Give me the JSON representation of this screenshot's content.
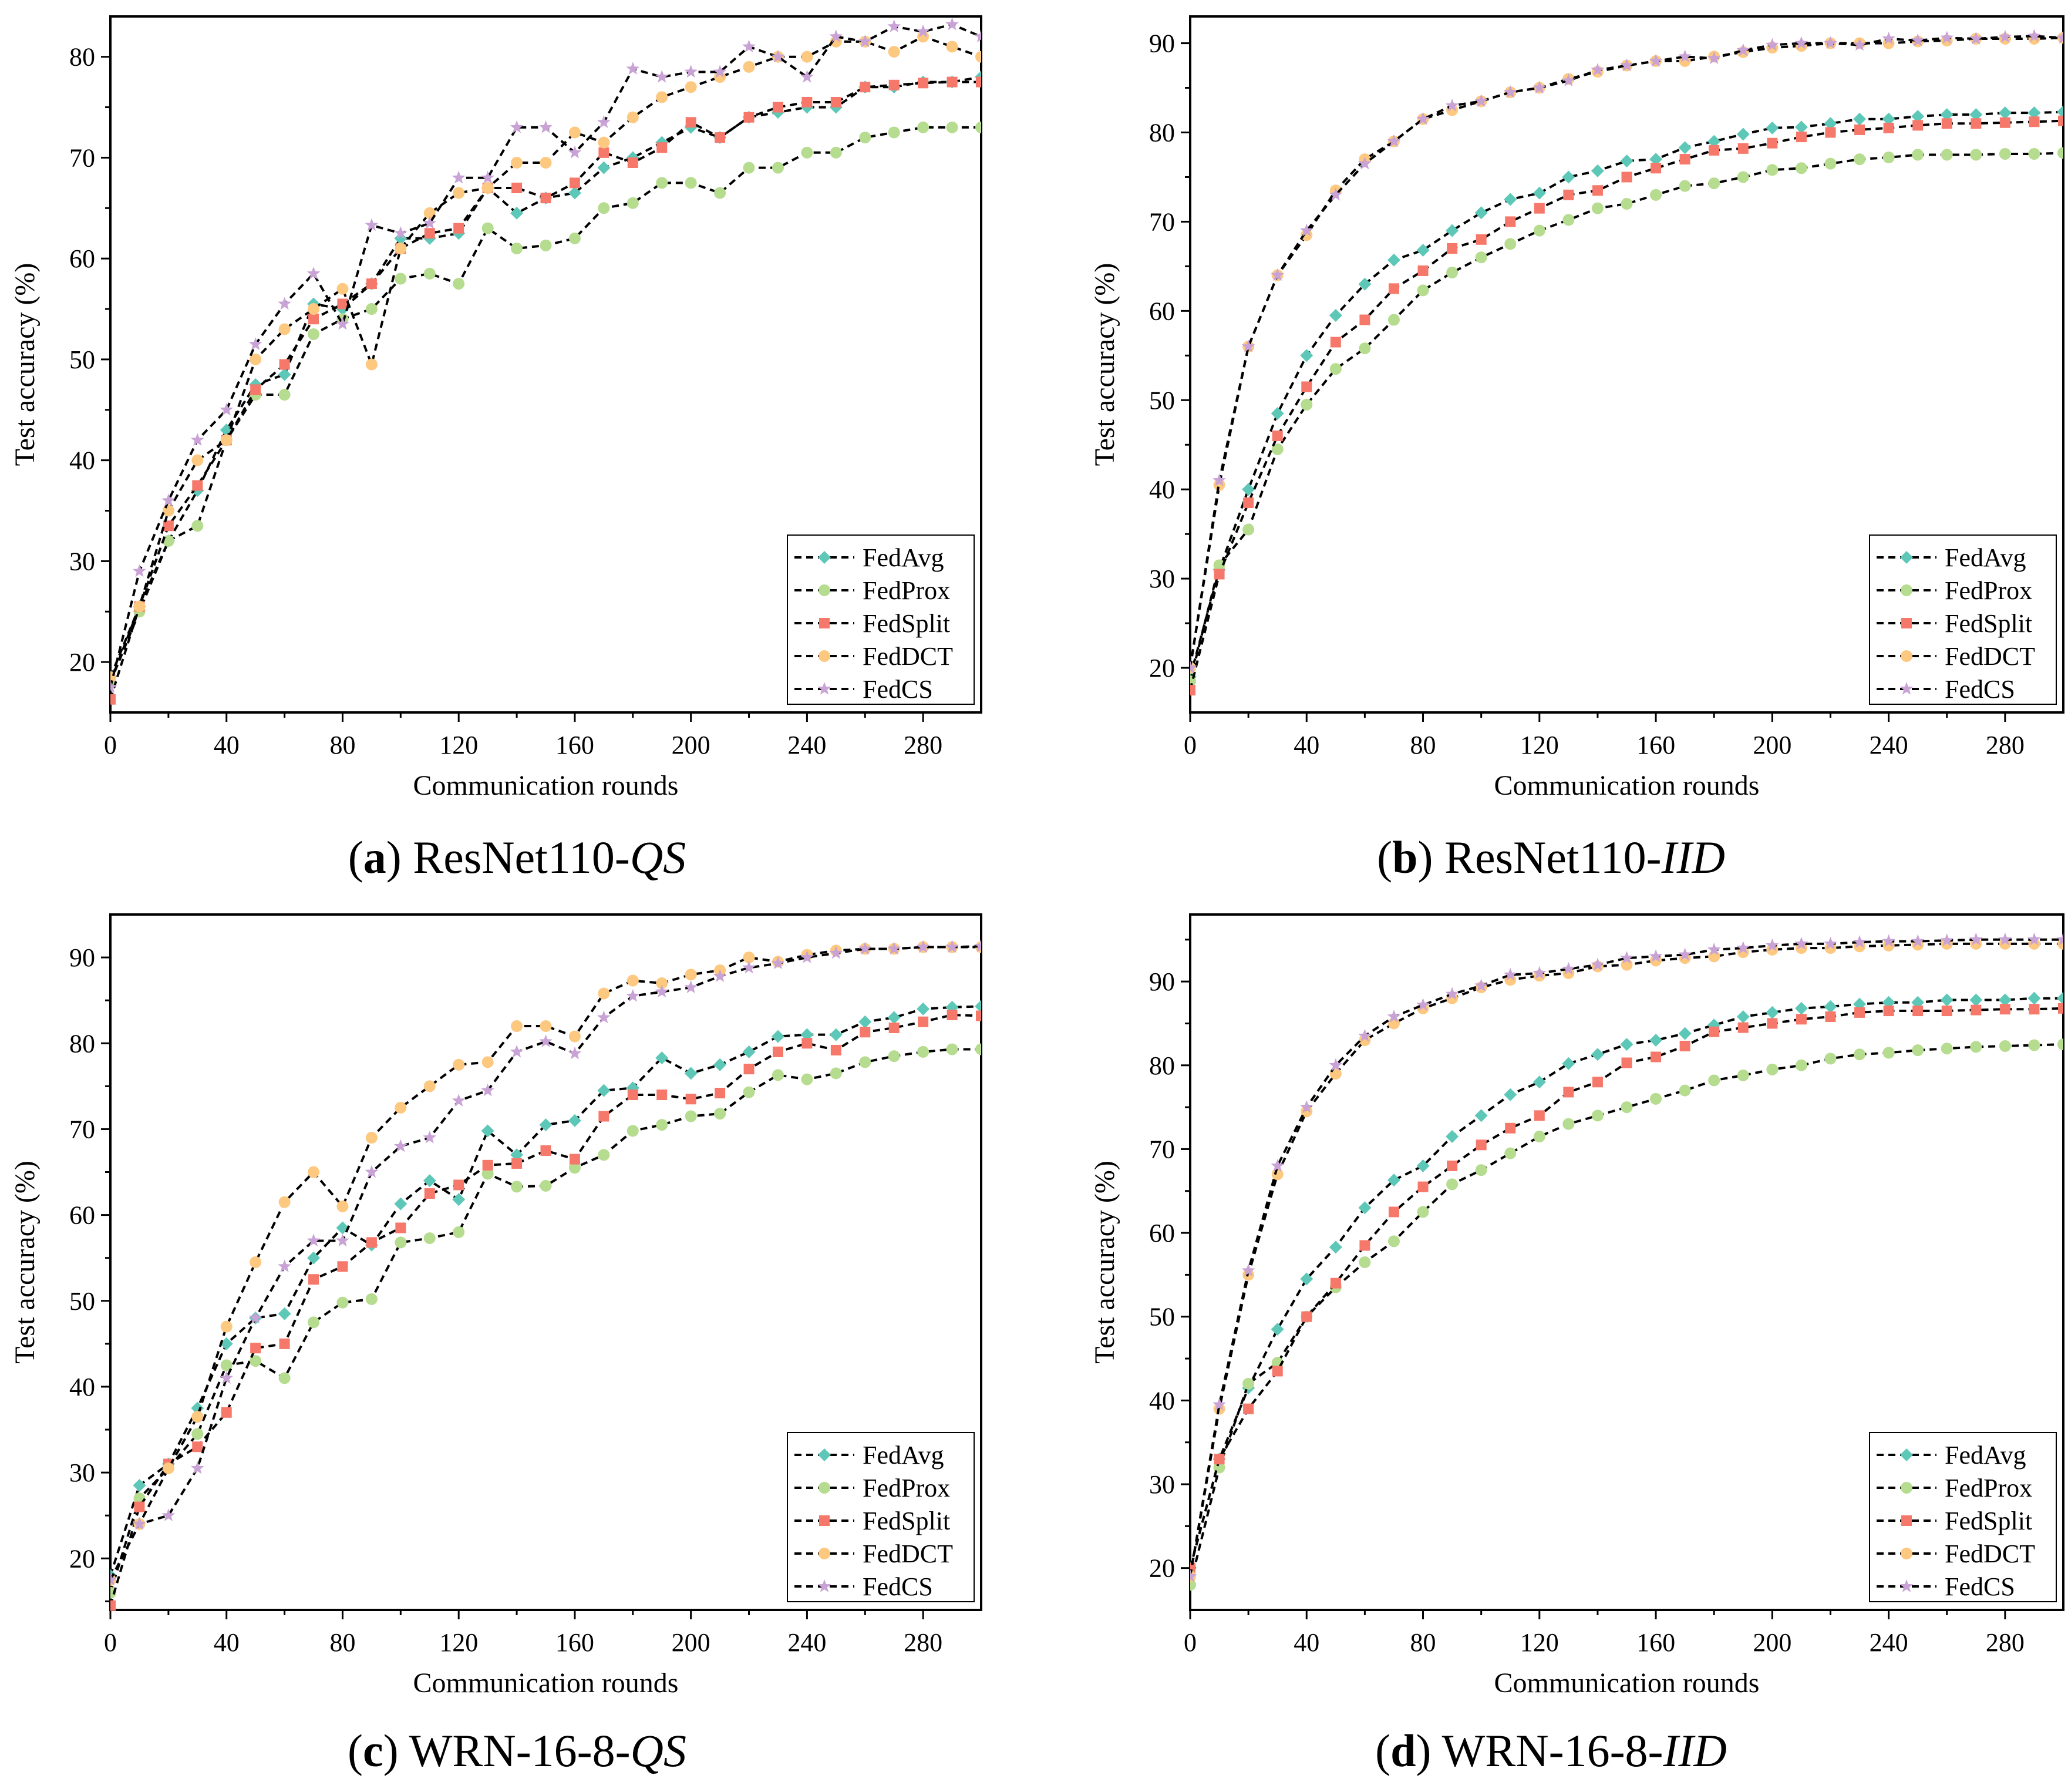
{
  "colors": {
    "FedAvg": "#5ec8b8",
    "FedProx": "#b6dc8f",
    "FedSplit": "#f6786a",
    "FedDCT": "#fdc880",
    "FedCS": "#c9a2d6",
    "line": "#000000"
  },
  "markers": {
    "FedAvg": "diamond",
    "FedProx": "circle",
    "FedSplit": "square",
    "FedDCT": "circle",
    "FedCS": "star"
  },
  "chart_data": [
    {
      "type": "line",
      "caption": {
        "tag": "a",
        "name": "ResNet110-",
        "italic": "QS"
      },
      "xlabel": "Communication rounds",
      "ylabel": "Test accuracy (%)",
      "xlim": [
        0,
        300
      ],
      "ylim": [
        15,
        84
      ],
      "xticks": [
        "0",
        "40",
        "80",
        "120",
        "160",
        "200",
        "240",
        "280"
      ],
      "yticks": [
        "20",
        "30",
        "40",
        "50",
        "60",
        "70",
        "80"
      ],
      "legend_position": "bottom-right",
      "x": [
        0,
        10,
        20,
        30,
        40,
        50,
        60,
        70,
        80,
        90,
        100,
        110,
        120,
        130,
        140,
        150,
        160,
        170,
        180,
        190,
        200,
        210,
        220,
        230,
        240,
        250,
        260,
        270,
        280,
        290,
        300
      ],
      "series": [
        {
          "name": "FedAvg",
          "values": [
            18,
            25.5,
            32,
            37,
            43,
            47.5,
            48.5,
            55.5,
            55,
            57.5,
            62,
            62,
            62.5,
            67,
            64.5,
            66,
            66.5,
            69,
            70,
            71.5,
            73,
            72,
            74,
            74.5,
            75,
            75,
            77,
            77,
            77.5,
            77.5,
            78
          ]
        },
        {
          "name": "FedProx",
          "values": [
            18,
            25,
            32,
            33.5,
            42,
            46.5,
            46.5,
            52.5,
            54,
            55,
            58,
            58.5,
            57.5,
            63,
            61,
            61.3,
            62,
            65,
            65.5,
            67.5,
            67.5,
            66.5,
            69,
            69,
            70.5,
            70.5,
            72,
            72.5,
            73,
            73,
            73
          ]
        },
        {
          "name": "FedSplit",
          "values": [
            16.3,
            25.5,
            33.5,
            37.5,
            42,
            47,
            49.5,
            54,
            55.5,
            57.5,
            61,
            62.5,
            63,
            67,
            67,
            66,
            67.5,
            70.5,
            69.5,
            71,
            73.5,
            72,
            74,
            75,
            75.5,
            75.5,
            77,
            77.2,
            77.4,
            77.5,
            77.5
          ]
        },
        {
          "name": "FedDCT",
          "values": [
            18.5,
            25.5,
            35,
            40,
            42,
            50,
            53,
            55,
            57,
            49.5,
            61,
            64.5,
            66.5,
            67,
            69.5,
            69.5,
            72.5,
            71.5,
            74,
            76,
            77,
            78,
            79,
            80,
            80,
            81.5,
            81.5,
            80.5,
            82,
            81,
            80
          ]
        },
        {
          "name": "FedCS",
          "values": [
            17.5,
            29,
            36,
            42,
            45,
            51.5,
            55.5,
            58.5,
            53.5,
            63.3,
            62.5,
            63.5,
            68,
            68,
            73,
            73,
            70.5,
            73.5,
            78.8,
            78,
            78.5,
            78.5,
            81,
            80,
            78,
            82,
            81.5,
            83,
            82.5,
            83.2,
            82
          ]
        }
      ]
    },
    {
      "type": "line",
      "caption": {
        "tag": "b",
        "name": "ResNet110-",
        "italic": "IID"
      },
      "xlabel": "Communication rounds",
      "ylabel": "Test accuracy (%)",
      "xlim": [
        0,
        300
      ],
      "ylim": [
        15,
        93
      ],
      "xticks": [
        "0",
        "40",
        "80",
        "120",
        "160",
        "200",
        "240",
        "280"
      ],
      "yticks": [
        "20",
        "30",
        "40",
        "50",
        "60",
        "70",
        "80",
        "90"
      ],
      "legend_position": "bottom-right",
      "x": [
        0,
        10,
        20,
        30,
        40,
        50,
        60,
        70,
        80,
        90,
        100,
        110,
        120,
        130,
        140,
        150,
        160,
        170,
        180,
        190,
        200,
        210,
        220,
        230,
        240,
        250,
        260,
        270,
        280,
        290,
        300
      ],
      "series": [
        {
          "name": "FedAvg",
          "values": [
            19,
            31,
            40,
            48.5,
            55,
            59.5,
            63,
            65.7,
            66.8,
            69,
            71,
            72.5,
            73.2,
            75,
            75.7,
            76.8,
            77,
            78.3,
            79,
            79.8,
            80.5,
            80.6,
            81,
            81.5,
            81.5,
            81.8,
            82,
            82,
            82.2,
            82.2,
            82.3
          ]
        },
        {
          "name": "FedProx",
          "values": [
            18.5,
            31.5,
            35.5,
            44.5,
            49.5,
            53.5,
            55.8,
            59,
            62.3,
            64.3,
            66,
            67.5,
            69,
            70.2,
            71.5,
            72,
            73,
            74,
            74.3,
            75,
            75.8,
            76,
            76.5,
            77,
            77.2,
            77.5,
            77.5,
            77.5,
            77.6,
            77.6,
            77.7
          ]
        },
        {
          "name": "FedSplit",
          "values": [
            17.5,
            30.5,
            38.5,
            46,
            51.5,
            56.5,
            59,
            62.5,
            64.5,
            67,
            68,
            70,
            71.5,
            73,
            73.5,
            75,
            76,
            77,
            78,
            78.2,
            78.8,
            79.5,
            80,
            80.3,
            80.5,
            80.8,
            81,
            81,
            81.1,
            81.2,
            81.3
          ]
        },
        {
          "name": "FedDCT",
          "values": [
            20,
            40.5,
            56,
            64,
            68.5,
            73.5,
            77,
            79,
            81.5,
            82.5,
            83.5,
            84.5,
            85,
            86,
            86.8,
            87.5,
            88,
            88,
            88.5,
            89,
            89.5,
            89.7,
            90,
            90,
            90,
            90.2,
            90.3,
            90.5,
            90.5,
            90.5,
            90.6
          ]
        },
        {
          "name": "FedCS",
          "values": [
            20,
            41,
            56,
            64,
            69,
            73,
            76.5,
            79,
            81.5,
            83,
            83.5,
            84.5,
            85,
            85.8,
            87,
            87.5,
            88,
            88.5,
            88.3,
            89.2,
            89.8,
            90,
            90,
            89.8,
            90.5,
            90.3,
            90.6,
            90.5,
            90.7,
            90.8,
            90.6
          ]
        }
      ]
    },
    {
      "type": "line",
      "caption": {
        "tag": "c",
        "name": "WRN-16-8-",
        "italic": "QS"
      },
      "xlabel": "Communication rounds",
      "ylabel": "Test accuracy (%)",
      "xlim": [
        0,
        300
      ],
      "ylim": [
        14,
        95
      ],
      "xticks": [
        "0",
        "40",
        "80",
        "120",
        "160",
        "200",
        "240",
        "280"
      ],
      "yticks": [
        "20",
        "30",
        "40",
        "50",
        "60",
        "70",
        "80",
        "90"
      ],
      "legend_position": "bottom-right",
      "x": [
        0,
        10,
        20,
        30,
        40,
        50,
        60,
        70,
        80,
        90,
        100,
        110,
        120,
        130,
        140,
        150,
        160,
        170,
        180,
        190,
        200,
        210,
        220,
        230,
        240,
        250,
        260,
        270,
        280,
        290,
        300
      ],
      "series": [
        {
          "name": "FedAvg",
          "values": [
            18,
            28.5,
            31,
            37.5,
            45,
            48,
            48.5,
            55,
            58.5,
            56.5,
            61.3,
            64,
            61.8,
            69.8,
            67,
            70.5,
            71,
            74.5,
            74.8,
            78.3,
            76.5,
            77.5,
            79,
            80.8,
            81,
            81,
            82.5,
            83,
            84,
            84.2,
            84.3
          ]
        },
        {
          "name": "FedProx",
          "values": [
            16,
            27,
            30.5,
            34.5,
            42.5,
            43,
            41,
            47.5,
            49.8,
            50.2,
            56.8,
            57.3,
            58,
            64.8,
            63.3,
            63.4,
            65.5,
            67,
            69.8,
            70.5,
            71.5,
            71.8,
            74.3,
            76.3,
            75.8,
            76.5,
            77.8,
            78.5,
            79,
            79.3,
            79.3
          ]
        },
        {
          "name": "FedSplit",
          "values": [
            14.5,
            26,
            31,
            33,
            37,
            44.5,
            45,
            52.5,
            54,
            56.8,
            58.5,
            62.5,
            63.5,
            65.8,
            66,
            67.5,
            66.5,
            71.5,
            74,
            74,
            73.5,
            74.2,
            77,
            79,
            80,
            79.2,
            81.3,
            81.8,
            82.5,
            83.3,
            83.2
          ]
        },
        {
          "name": "FedDCT",
          "values": [
            17.5,
            24,
            30.5,
            36.5,
            47,
            54.5,
            61.5,
            65,
            61,
            69,
            72.5,
            75,
            77.5,
            77.8,
            82,
            82,
            80.8,
            85.8,
            87.3,
            87,
            88,
            88.5,
            90,
            89.5,
            90.3,
            90.8,
            91,
            91,
            91.2,
            91.2,
            91.2
          ]
        },
        {
          "name": "FedCS",
          "values": [
            17.5,
            24,
            25,
            30.5,
            41,
            48,
            54,
            57,
            57,
            65,
            68,
            69,
            73.3,
            74.5,
            79,
            80.2,
            78.8,
            83,
            85.5,
            86,
            86.5,
            87.8,
            88.8,
            89.3,
            90,
            90.5,
            91,
            91,
            91.2,
            91.2,
            91.3
          ]
        }
      ]
    },
    {
      "type": "line",
      "caption": {
        "tag": "d",
        "name": "WRN-16-8-",
        "italic": "IID"
      },
      "xlabel": "Communication rounds",
      "ylabel": "Test accuracy (%)",
      "xlim": [
        0,
        300
      ],
      "ylim": [
        15,
        98
      ],
      "xticks": [
        "0",
        "40",
        "80",
        "120",
        "160",
        "200",
        "240",
        "280"
      ],
      "yticks": [
        "20",
        "30",
        "40",
        "50",
        "60",
        "70",
        "80",
        "90"
      ],
      "legend_position": "bottom-right",
      "x": [
        0,
        10,
        20,
        30,
        40,
        50,
        60,
        70,
        80,
        90,
        100,
        110,
        120,
        130,
        140,
        150,
        160,
        170,
        180,
        190,
        200,
        210,
        220,
        230,
        240,
        250,
        260,
        270,
        280,
        290,
        300
      ],
      "series": [
        {
          "name": "FedAvg",
          "values": [
            20,
            33,
            41.5,
            48.5,
            54.5,
            58.3,
            63,
            66.3,
            68,
            71.5,
            74,
            76.5,
            78,
            80.2,
            81.3,
            82.5,
            83,
            83.8,
            84.8,
            85.8,
            86.3,
            86.8,
            87,
            87.3,
            87.5,
            87.5,
            87.8,
            87.8,
            87.8,
            88,
            88
          ]
        },
        {
          "name": "FedProx",
          "values": [
            18,
            32,
            42,
            44.5,
            50,
            53.5,
            56.5,
            59,
            62.5,
            65.8,
            67.5,
            69.5,
            71.5,
            73,
            74,
            75,
            76,
            77,
            78.2,
            78.8,
            79.5,
            80,
            80.8,
            81.3,
            81.5,
            81.8,
            82,
            82.2,
            82.3,
            82.4,
            82.5
          ]
        },
        {
          "name": "FedSplit",
          "values": [
            20,
            33,
            39,
            43.5,
            50,
            54,
            58.5,
            62.5,
            65.5,
            68,
            70.5,
            72.5,
            74,
            76.8,
            78,
            80.3,
            81,
            82.3,
            84,
            84.5,
            85,
            85.5,
            85.8,
            86.3,
            86.5,
            86.5,
            86.5,
            86.6,
            86.7,
            86.7,
            86.8
          ]
        },
        {
          "name": "FedDCT",
          "values": [
            19,
            39,
            55,
            67,
            74.5,
            79,
            83,
            85,
            86.8,
            88,
            89.3,
            90.2,
            90.7,
            91,
            91.8,
            92,
            92.5,
            92.8,
            93,
            93.5,
            93.8,
            94,
            94,
            94.2,
            94.3,
            94.4,
            94.5,
            94.5,
            94.5,
            94.5,
            94.5
          ]
        },
        {
          "name": "FedCS",
          "values": [
            19,
            39.5,
            55.5,
            68,
            75,
            80,
            83.5,
            85.8,
            87.2,
            88.5,
            89.5,
            90.8,
            91,
            91.5,
            92,
            92.8,
            93,
            93.2,
            93.8,
            94,
            94.3,
            94.5,
            94.5,
            94.7,
            94.8,
            94.8,
            94.9,
            95,
            95,
            95,
            95
          ]
        }
      ]
    }
  ]
}
